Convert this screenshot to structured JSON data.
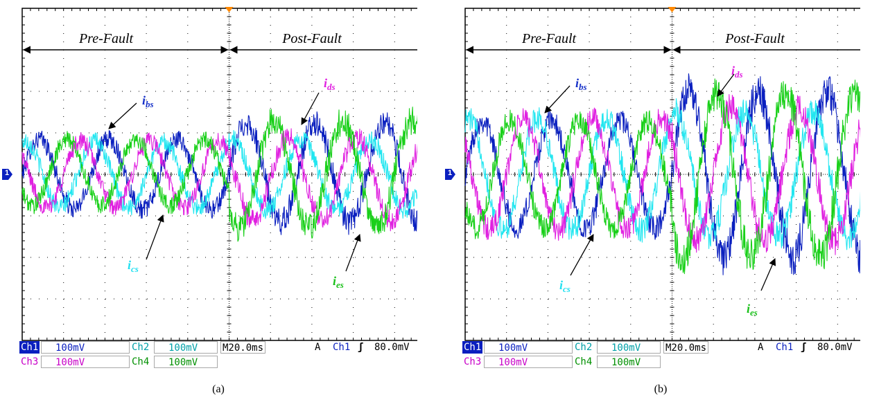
{
  "colors": {
    "ch1": "#0a1fbf",
    "ch2": "#22e6f0",
    "ch3": "#e020e0",
    "ch4": "#19d019",
    "grid": "#000000",
    "trigger": "#ff8800"
  },
  "panels": [
    {
      "caption": "(a)",
      "region_pre": "Pre-Fault",
      "region_post": "Post-Fault",
      "label_ibs": {
        "main": "i",
        "sub": "bs"
      },
      "label_ics": {
        "main": "i",
        "sub": "cs"
      },
      "label_ids": {
        "main": "i",
        "sub": "ds"
      },
      "label_ies": {
        "main": "i",
        "sub": "es"
      },
      "ch1_marker": "1",
      "status": {
        "ch1": "Ch1",
        "ch1_scale": "100mV",
        "ch2": "Ch2",
        "ch2_scale": "100mV",
        "ch3": "Ch3",
        "ch3_scale": "100mV",
        "ch4": "Ch4",
        "ch4_scale": "100mV",
        "timebase": "M20.0ms",
        "trig_mode": "A",
        "trig_source": "Ch1",
        "trig_slope": "ʃ",
        "trig_level": "80.0mV"
      }
    },
    {
      "caption": "(b)",
      "region_pre": "Pre-Fault",
      "region_post": "Post-Fault",
      "label_ibs": {
        "main": "i",
        "sub": "bs"
      },
      "label_ics": {
        "main": "i",
        "sub": "cs"
      },
      "label_ids": {
        "main": "i",
        "sub": "ds"
      },
      "label_ies": {
        "main": "i",
        "sub": "es"
      },
      "ch1_marker": "1",
      "status": {
        "ch1": "Ch1",
        "ch1_scale": "100mV",
        "ch2": "Ch2",
        "ch2_scale": "100mV",
        "ch3": "Ch3",
        "ch3_scale": "100mV",
        "ch4": "Ch4",
        "ch4_scale": "100mV",
        "timebase": "M20.0ms",
        "trig_mode": "A",
        "trig_source": "Ch1",
        "trig_slope": "ʃ",
        "trig_level": "80.0mV"
      }
    }
  ],
  "chart_data": [
    {
      "type": "line",
      "x_unit": "div",
      "y_unit": "div",
      "xlim": [
        0,
        10
      ],
      "ylim": [
        -4,
        4
      ],
      "grid": true,
      "fault_at_div": 5,
      "frequency_cycles_per_div": 0.6,
      "noise_fraction": 0.12,
      "series": [
        {
          "name": "Ch1",
          "label": "ibs",
          "amp_pre_div": 0.85,
          "amp_post_div": 1.2,
          "offset_pre_div": 0.0,
          "offset_post_div": 0.05,
          "phase_deg": 0
        },
        {
          "name": "Ch2",
          "label": "ics",
          "amp_pre_div": 0.8,
          "amp_post_div": 0.85,
          "offset_pre_div": 0.0,
          "offset_post_div": 0.0,
          "phase_deg": 72
        },
        {
          "name": "Ch3",
          "label": "ids",
          "amp_pre_div": 0.8,
          "amp_post_div": 1.0,
          "offset_pre_div": 0.0,
          "offset_post_div": -0.1,
          "phase_deg": 144
        },
        {
          "name": "Ch4",
          "label": "ies",
          "amp_pre_div": 0.8,
          "amp_post_div": 1.3,
          "offset_pre_div": 0.05,
          "offset_post_div": 0.0,
          "phase_deg": 216
        }
      ]
    },
    {
      "type": "line",
      "x_unit": "div",
      "y_unit": "div",
      "xlim": [
        0,
        10
      ],
      "ylim": [
        -4,
        4
      ],
      "grid": true,
      "fault_at_div": 5,
      "frequency_cycles_per_div": 0.6,
      "noise_fraction": 0.1,
      "series": [
        {
          "name": "Ch1",
          "label": "ibs",
          "amp_pre_div": 1.3,
          "amp_post_div": 2.0,
          "offset_pre_div": 0.0,
          "offset_post_div": 0.0,
          "phase_deg": 0
        },
        {
          "name": "Ch2",
          "label": "ics",
          "amp_pre_div": 1.35,
          "amp_post_div": 1.5,
          "offset_pre_div": 0.0,
          "offset_post_div": 0.0,
          "phase_deg": 72
        },
        {
          "name": "Ch3",
          "label": "ids",
          "amp_pre_div": 1.35,
          "amp_post_div": 1.6,
          "offset_pre_div": 0.0,
          "offset_post_div": 0.0,
          "phase_deg": 144
        },
        {
          "name": "Ch4",
          "label": "ies",
          "amp_pre_div": 1.3,
          "amp_post_div": 2.0,
          "offset_pre_div": 0.0,
          "offset_post_div": 0.0,
          "phase_deg": 216
        }
      ]
    }
  ]
}
